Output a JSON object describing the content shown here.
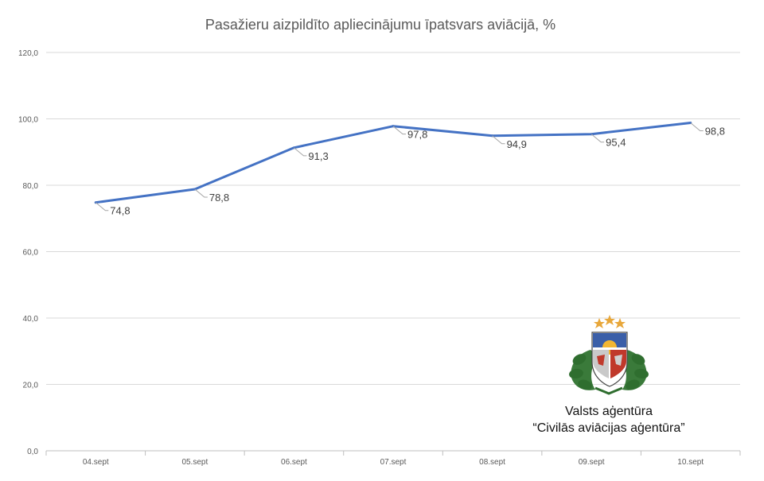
{
  "chart_data": {
    "type": "line",
    "title": "Pasažieru aizpildīto apliecinājumu īpatsvars aviācijā, %",
    "xlabel": "",
    "ylabel": "",
    "categories": [
      "04.sept",
      "05.sept",
      "06.sept",
      "07.sept",
      "08.sept",
      "09.sept",
      "10.sept"
    ],
    "values": [
      74.8,
      78.8,
      91.3,
      97.8,
      94.9,
      95.4,
      98.8
    ],
    "data_labels": [
      "74,8",
      "78,8",
      "91,3",
      "97,8",
      "94,9",
      "95,4",
      "98,8"
    ],
    "yticks": [
      "0,0",
      "20,0",
      "40,0",
      "60,0",
      "80,0",
      "100,0",
      "120,0"
    ],
    "ylim": [
      0,
      120
    ],
    "grid": true,
    "legend": "none",
    "line_color": "#4472c4"
  },
  "logo": {
    "line1": "Valsts aģentūra",
    "line2": "“Civilās aviācijas aģentūra”"
  },
  "colors": {
    "grid": "#d9d9d9",
    "axis": "#bfbfbf",
    "line": "#4472c4",
    "leader": "#a6a6a6"
  }
}
